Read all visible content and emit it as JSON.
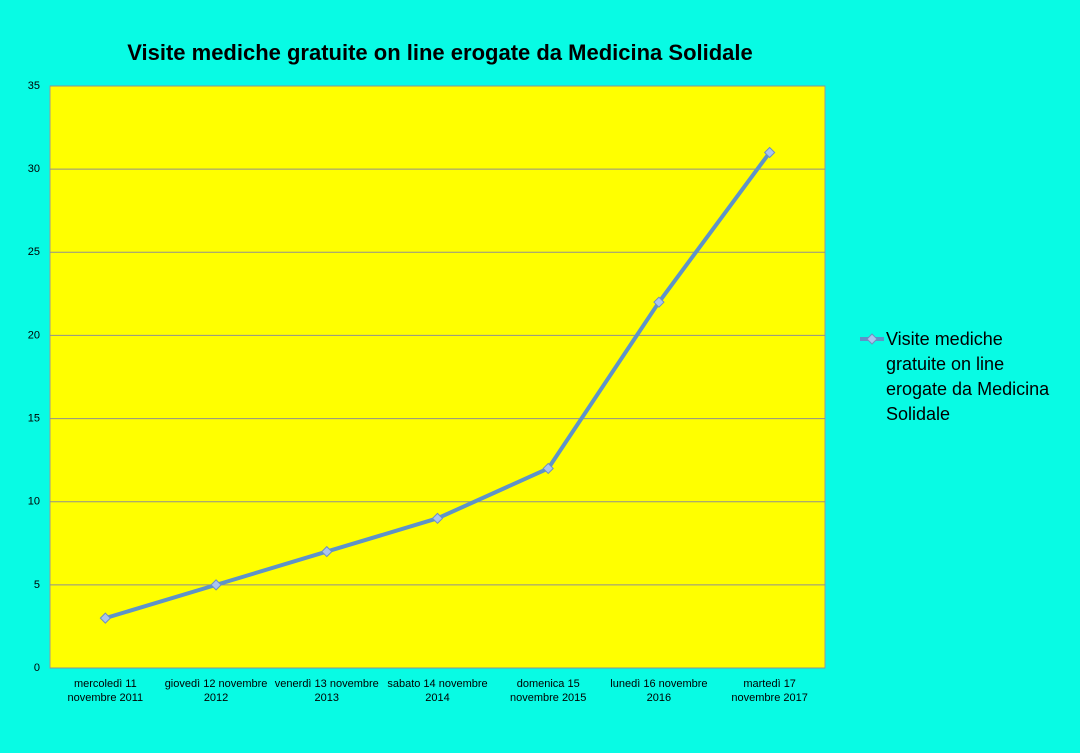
{
  "chart_data": {
    "type": "line",
    "title": "Visite mediche gratuite on line erogate da Medicina Solidale",
    "categories": [
      "mercoledì 11 novembre 2011",
      "giovedì 12 novembre 2012",
      "venerdì 13 novembre 2013",
      "sabato 14 novembre 2014",
      "domenica 15 novembre 2015",
      "lunedì 16 novembre 2016",
      "martedì 17 novembre 2017"
    ],
    "series": [
      {
        "name": "Visite mediche gratuite on line erogate da Medicina Solidale",
        "color": "#5e93c8",
        "values": [
          3,
          5,
          7,
          9,
          12,
          22,
          31
        ]
      }
    ],
    "ylim": [
      0,
      35
    ],
    "yticks": [
      0,
      5,
      10,
      15,
      20,
      25,
      30,
      35
    ],
    "grid": true,
    "legend": "right"
  }
}
